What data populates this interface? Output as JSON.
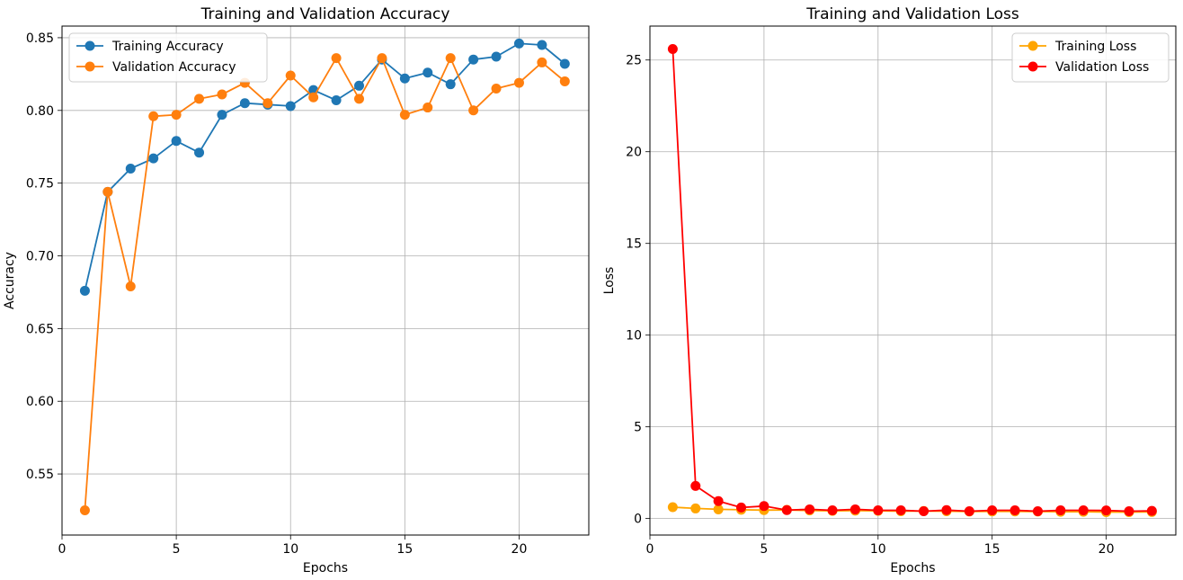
{
  "chart_data": [
    {
      "type": "line",
      "title": "Training and Validation Accuracy",
      "xlabel": "Epochs",
      "ylabel": "Accuracy",
      "xlim": [
        0,
        23.05
      ],
      "ylim": [
        0.508,
        0.858
      ],
      "xticks": [
        0,
        5,
        10,
        15,
        20
      ],
      "yticks": [
        0.55,
        0.6,
        0.65,
        0.7,
        0.75,
        0.8,
        0.85
      ],
      "grid": true,
      "legend_position": "upper-left",
      "x": [
        1,
        2,
        3,
        4,
        5,
        6,
        7,
        8,
        9,
        10,
        11,
        12,
        13,
        14,
        15,
        16,
        17,
        18,
        19,
        20,
        21,
        22
      ],
      "series": [
        {
          "name": "Training Accuracy",
          "color": "#1f77b4",
          "values": [
            0.676,
            0.744,
            0.76,
            0.767,
            0.779,
            0.771,
            0.797,
            0.805,
            0.804,
            0.803,
            0.814,
            0.807,
            0.817,
            0.835,
            0.822,
            0.826,
            0.818,
            0.835,
            0.837,
            0.846,
            0.845,
            0.832
          ]
        },
        {
          "name": "Validation Accuracy",
          "color": "#ff7f0e",
          "values": [
            0.525,
            0.744,
            0.679,
            0.796,
            0.797,
            0.808,
            0.811,
            0.819,
            0.805,
            0.824,
            0.809,
            0.836,
            0.808,
            0.836,
            0.797,
            0.802,
            0.836,
            0.8,
            0.815,
            0.819,
            0.833,
            0.82
          ]
        }
      ]
    },
    {
      "type": "line",
      "title": "Training and Validation Loss",
      "xlabel": "Epochs",
      "ylabel": "Loss",
      "xlim": [
        0,
        23.05
      ],
      "ylim": [
        -0.9,
        26.85
      ],
      "xticks": [
        0,
        5,
        10,
        15,
        20
      ],
      "yticks": [
        0,
        5,
        10,
        15,
        20,
        25
      ],
      "grid": true,
      "legend_position": "upper-right",
      "x": [
        1,
        2,
        3,
        4,
        5,
        6,
        7,
        8,
        9,
        10,
        11,
        12,
        13,
        14,
        15,
        16,
        17,
        18,
        19,
        20,
        21,
        22
      ],
      "series": [
        {
          "name": "Training Loss",
          "color": "#ffa500",
          "values": [
            0.62,
            0.55,
            0.5,
            0.48,
            0.46,
            0.47,
            0.44,
            0.42,
            0.43,
            0.42,
            0.4,
            0.41,
            0.4,
            0.38,
            0.39,
            0.39,
            0.38,
            0.37,
            0.37,
            0.35,
            0.35,
            0.36
          ]
        },
        {
          "name": "Validation Loss",
          "color": "#ff0000",
          "values": [
            25.6,
            1.78,
            0.95,
            0.6,
            0.68,
            0.46,
            0.5,
            0.45,
            0.5,
            0.45,
            0.45,
            0.4,
            0.46,
            0.4,
            0.45,
            0.45,
            0.4,
            0.45,
            0.45,
            0.44,
            0.4,
            0.42
          ]
        }
      ]
    }
  ]
}
